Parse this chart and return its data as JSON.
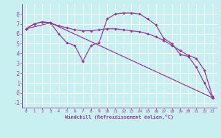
{
  "xlabel": "Windchill (Refroidissement éolien,°C)",
  "background_color": "#c8f0f0",
  "grid_color": "#ffffff",
  "line_color": "#993399",
  "xlim": [
    -0.5,
    23.5
  ],
  "ylim": [
    -1.5,
    9.0
  ],
  "yticks": [
    -1,
    0,
    1,
    2,
    3,
    4,
    5,
    6,
    7,
    8
  ],
  "xticks": [
    0,
    1,
    2,
    3,
    4,
    5,
    6,
    7,
    8,
    9,
    10,
    11,
    12,
    13,
    14,
    15,
    16,
    17,
    18,
    19,
    20,
    21,
    22,
    23
  ],
  "line1_x": [
    0,
    1,
    2,
    3,
    4,
    5,
    6,
    7,
    8,
    9,
    10,
    11,
    12,
    13,
    14,
    15,
    16,
    17,
    18,
    19,
    20,
    21,
    22,
    23
  ],
  "line1_y": [
    6.5,
    7.0,
    7.2,
    7.1,
    6.0,
    5.1,
    4.8,
    3.2,
    4.8,
    5.1,
    7.5,
    8.0,
    8.1,
    8.1,
    8.0,
    7.5,
    6.9,
    5.5,
    5.0,
    3.9,
    3.7,
    2.6,
    1.0,
    -0.5
  ],
  "line2_x": [
    0,
    1,
    2,
    3,
    4,
    5,
    6,
    7,
    8,
    9,
    10,
    11,
    12,
    13,
    14,
    15,
    16,
    17,
    18,
    19,
    20,
    21,
    22,
    23
  ],
  "line2_y": [
    6.5,
    7.0,
    7.2,
    7.1,
    6.8,
    6.6,
    6.4,
    6.3,
    6.3,
    6.4,
    6.5,
    6.5,
    6.4,
    6.3,
    6.2,
    6.0,
    5.7,
    5.3,
    4.8,
    4.3,
    3.8,
    3.5,
    2.3,
    -0.4
  ],
  "line3_x": [
    0,
    3,
    23
  ],
  "line3_y": [
    6.5,
    7.1,
    -0.5
  ]
}
